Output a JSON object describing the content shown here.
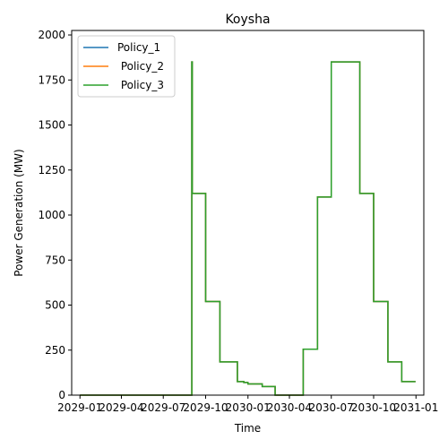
{
  "chart_data": {
    "type": "line",
    "title": "Koysha",
    "xlabel": "Time",
    "ylabel": "Power Generation (MW)",
    "ylim": [
      0,
      2025
    ],
    "xlim": [
      "2028-12-14",
      "2031-01-18"
    ],
    "y_ticks": [
      0,
      250,
      500,
      750,
      1000,
      1250,
      1500,
      1750,
      2000
    ],
    "x_ticks": [
      {
        "date": "2029-01-01",
        "label": "2029-01"
      },
      {
        "date": "2029-04-01",
        "label": "2029-04"
      },
      {
        "date": "2029-07-01",
        "label": "2029-07"
      },
      {
        "date": "2029-10-01",
        "label": "2029-10"
      },
      {
        "date": "2030-01-01",
        "label": "2030-01"
      },
      {
        "date": "2030-04-01",
        "label": "2030-04"
      },
      {
        "date": "2030-07-01",
        "label": "2030-07"
      },
      {
        "date": "2030-10-01",
        "label": "2030-10"
      },
      {
        "date": "2031-01-01",
        "label": "2031-01"
      }
    ],
    "legend_position": "top-left",
    "grid": false,
    "step": true,
    "x": [
      "2029-01-01",
      "2029-08-31",
      "2029-09-01",
      "2029-09-02",
      "2029-10-01",
      "2029-11-01",
      "2029-12-01",
      "2029-12-09",
      "2029-12-16",
      "2029-12-23",
      "2030-01-01",
      "2030-02-01",
      "2030-03-01",
      "2030-04-01",
      "2030-05-01",
      "2030-06-01",
      "2030-07-01",
      "2030-08-01",
      "2030-09-01",
      "2030-10-01",
      "2030-11-01",
      "2030-12-01",
      "2030-12-31"
    ],
    "series": [
      {
        "name": "Policy_1",
        "color": "#1f77b4",
        "values": [
          0,
          0,
          1850,
          1120,
          520,
          185,
          185,
          75,
          75,
          70,
          62,
          48,
          0,
          0,
          255,
          1100,
          1850,
          1850,
          1120,
          520,
          185,
          75,
          75
        ]
      },
      {
        "name": " Policy_2",
        "color": "#ff7f0e",
        "values": [
          0,
          0,
          1850,
          1120,
          520,
          185,
          185,
          75,
          75,
          70,
          62,
          48,
          0,
          0,
          255,
          1100,
          1850,
          1850,
          1120,
          520,
          185,
          75,
          75
        ]
      },
      {
        "name": " Policy_3",
        "color": "#2ca02c",
        "values": [
          0,
          0,
          1850,
          1120,
          520,
          185,
          185,
          75,
          75,
          70,
          62,
          48,
          0,
          0,
          255,
          1100,
          1850,
          1850,
          1120,
          520,
          185,
          75,
          75
        ]
      }
    ]
  }
}
